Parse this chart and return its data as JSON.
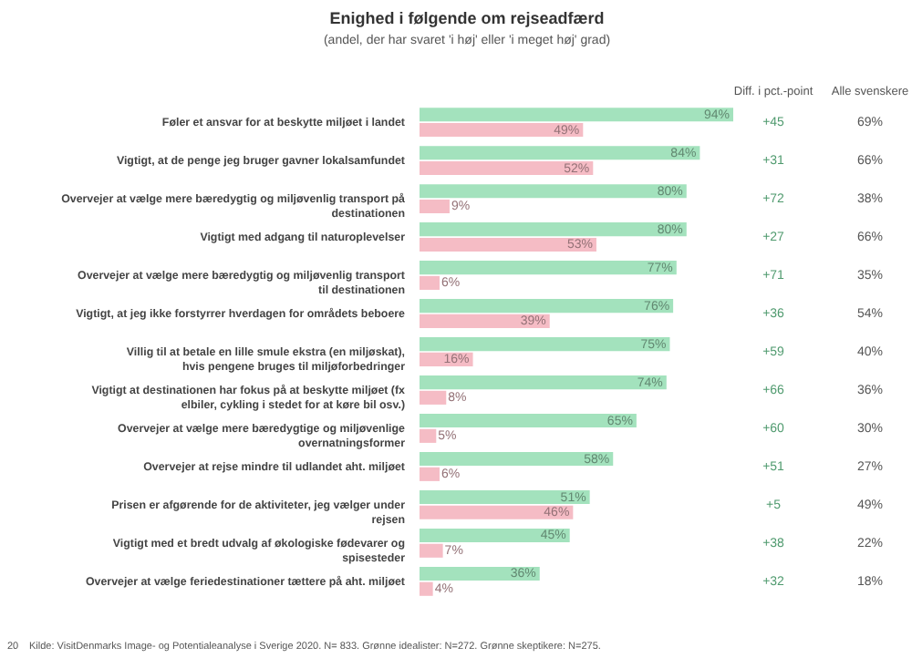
{
  "chart_data": {
    "type": "bar",
    "orientation": "horizontal",
    "title": "Enighed i følgende om rejseadfærd",
    "subtitle": "(andel, der har svaret 'i høj' eller 'i meget høj' grad)",
    "categories": [
      "Føler et ansvar for at beskytte miljøet i landet",
      "Vigtigt, at de penge jeg bruger gavner lokalsamfundet",
      "Overvejer at vælge mere bæredygtig og miljøvenlig transport på destinationen",
      "Vigtigt med adgang til naturoplevelser",
      "Overvejer at vælge mere bæredygtig og miljøvenlig transport til destinationen",
      "Vigtigt, at jeg ikke forstyrrer hverdagen for områdets beboere",
      "Villig til at betale en lille smule ekstra (en miljøskat), hvis pengene bruges til miljøforbedringer",
      "Vigtigt at destinationen har fokus på at beskytte miljøet (fx elbiler, cykling i stedet for at køre bil osv.)",
      "Overvejer at vælge mere bæredygtige og miljøvenlige overnatningsformer",
      "Overvejer at rejse mindre til udlandet aht. miljøet",
      "Prisen er afgørende for de aktiviteter, jeg vælger under rejsen",
      "Vigtigt med et bredt udvalg af økologiske fødevarer og spisesteder",
      "Overvejer at vælge feriedestinationer tættere på aht. miljøet"
    ],
    "series": [
      {
        "color": "#a3e2bd",
        "values": [
          94,
          84,
          80,
          80,
          77,
          76,
          75,
          74,
          65,
          58,
          51,
          45,
          36
        ],
        "value_labels": [
          "94%",
          "84%",
          "80%",
          "80%",
          "77%",
          "76%",
          "75%",
          "74%",
          "65%",
          "58%",
          "51%",
          "45%",
          "36%"
        ]
      },
      {
        "color": "#f5bcc5",
        "values": [
          49,
          52,
          9,
          53,
          6,
          39,
          16,
          8,
          5,
          6,
          46,
          7,
          4
        ],
        "value_labels": [
          "49%",
          "52%",
          "9%",
          "53%",
          "6%",
          "39%",
          "16%",
          "8%",
          "5%",
          "6%",
          "46%",
          "7%",
          "4%"
        ]
      }
    ],
    "annotations": [
      "Diff. i pct.-point",
      "Alle svenskere",
      "+45",
      "+31",
      "+72",
      "+27",
      "+71",
      "+36",
      "+59",
      "+66",
      "+60",
      "+51",
      "+5",
      "+38",
      "+32",
      "69%",
      "66%",
      "38%",
      "66%",
      "35%",
      "54%",
      "40%",
      "36%",
      "30%",
      "27%",
      "49%",
      "22%",
      "18%",
      "20",
      "Kilde: VisitDenmarks Image- og Potentialeanalyse i Sverige 2020. N= 833. Grønne idealister: N=272. Grønne skeptikere: N=275."
    ]
  }
}
